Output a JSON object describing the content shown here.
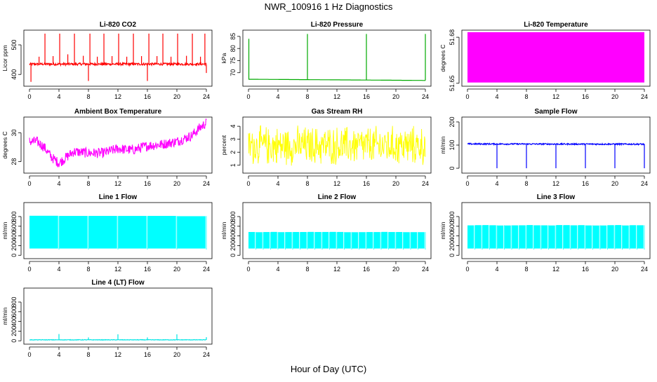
{
  "page": {
    "title": "NWR_100916  1 Hz Diagnostics",
    "xlabel": "Hour of Day (UTC)"
  },
  "chart_data": [
    {
      "type": "line",
      "title": "Li-820 CO2",
      "ylabel": "Licor ppm",
      "color": "#ff0000",
      "xlabel": "",
      "xlim": [
        0,
        24
      ],
      "xticks": [
        0,
        4,
        8,
        12,
        16,
        20,
        24
      ],
      "ylim": [
        365,
        545
      ],
      "yticks": [
        400,
        500
      ],
      "baseline": 435,
      "noise": 4,
      "spikes": [
        {
          "x": 0.2,
          "y": 375
        },
        {
          "x": 1.3,
          "y": 460
        },
        {
          "x": 2.1,
          "y": 538
        },
        {
          "x": 3.2,
          "y": 462
        },
        {
          "x": 4.1,
          "y": 538
        },
        {
          "x": 5.2,
          "y": 468
        },
        {
          "x": 6.1,
          "y": 538
        },
        {
          "x": 7.3,
          "y": 463
        },
        {
          "x": 8.0,
          "y": 378
        },
        {
          "x": 8.2,
          "y": 538
        },
        {
          "x": 9.2,
          "y": 460
        },
        {
          "x": 10.1,
          "y": 538
        },
        {
          "x": 11.2,
          "y": 462
        },
        {
          "x": 12.1,
          "y": 538
        },
        {
          "x": 13.2,
          "y": 460
        },
        {
          "x": 14.1,
          "y": 538
        },
        {
          "x": 15.2,
          "y": 462
        },
        {
          "x": 16.0,
          "y": 378
        },
        {
          "x": 16.2,
          "y": 538
        },
        {
          "x": 17.3,
          "y": 462
        },
        {
          "x": 18.1,
          "y": 538
        },
        {
          "x": 19.2,
          "y": 460
        },
        {
          "x": 20.1,
          "y": 538
        },
        {
          "x": 21.3,
          "y": 463
        },
        {
          "x": 22.1,
          "y": 538
        },
        {
          "x": 23.2,
          "y": 460
        },
        {
          "x": 23.8,
          "y": 538
        },
        {
          "x": 24.0,
          "y": 405
        }
      ]
    },
    {
      "type": "line",
      "title": "Li-820 Pressure",
      "ylabel": "kPa",
      "color": "#00aa00",
      "xlabel": "",
      "xlim": [
        0,
        24
      ],
      "xticks": [
        0,
        4,
        8,
        12,
        16,
        20,
        24
      ],
      "ylim": [
        65,
        87
      ],
      "yticks": [
        70,
        75,
        80,
        85
      ],
      "trend": [
        [
          0,
          67.3
        ],
        [
          24,
          66.8
        ]
      ],
      "spikes": [
        {
          "x": 0.05,
          "y": 84
        },
        {
          "x": 8.0,
          "y": 86
        },
        {
          "x": 16.0,
          "y": 86
        },
        {
          "x": 24.0,
          "y": 86
        }
      ]
    },
    {
      "type": "area",
      "title": "Li-820 Temperature",
      "ylabel": "degrees C",
      "color": "#ff00ff",
      "xlabel": "",
      "xlim": [
        0,
        24
      ],
      "xticks": [
        0,
        4,
        8,
        12,
        16,
        20,
        24
      ],
      "ylim": [
        51.649,
        51.6837
      ],
      "yticks": [
        51.65,
        51.68
      ],
      "ytick_labels": [
        "51.65",
        "51.68"
      ],
      "band": [
        51.6505,
        51.6833
      ]
    },
    {
      "type": "line",
      "title": "Ambient Box Temperature",
      "ylabel": "degrees C",
      "color": "#ff00ff",
      "xlabel": "",
      "xlim": [
        0,
        24
      ],
      "xticks": [
        0,
        4,
        8,
        12,
        16,
        20,
        24
      ],
      "ylim": [
        27.3,
        31.0
      ],
      "yticks": [
        28,
        30
      ],
      "noise": 0.35,
      "trend": [
        [
          0,
          29.4
        ],
        [
          1,
          29.4
        ],
        [
          2,
          29.0
        ],
        [
          3,
          28.3
        ],
        [
          4,
          27.9
        ],
        [
          5,
          28.3
        ],
        [
          6,
          28.7
        ],
        [
          8,
          28.6
        ],
        [
          10,
          28.6
        ],
        [
          12,
          28.9
        ],
        [
          14,
          28.8
        ],
        [
          16,
          29.1
        ],
        [
          18,
          29.2
        ],
        [
          20,
          29.4
        ],
        [
          22,
          29.8
        ],
        [
          23,
          30.3
        ],
        [
          24,
          30.7
        ]
      ]
    },
    {
      "type": "line",
      "title": "Gas Stream RH",
      "ylabel": "percent",
      "color": "#ffff00",
      "xlabel": "",
      "xlim": [
        0,
        24
      ],
      "xticks": [
        0,
        4,
        8,
        12,
        16,
        20,
        24
      ],
      "ylim": [
        0.5,
        4.6
      ],
      "yticks": [
        1,
        2,
        3,
        4
      ],
      "trend": [
        [
          0,
          2.5
        ],
        [
          24,
          2.5
        ]
      ],
      "noise": 1.7
    },
    {
      "type": "line",
      "title": "Sample Flow",
      "ylabel": "ml/min",
      "color": "#0000ff",
      "xlabel": "",
      "xlim": [
        0,
        24
      ],
      "xticks": [
        0,
        4,
        8,
        12,
        16,
        20,
        24
      ],
      "ylim": [
        -15,
        215
      ],
      "yticks": [
        0,
        100,
        200
      ],
      "trend": [
        [
          0,
          105
        ],
        [
          24,
          104
        ]
      ],
      "noise": 3,
      "spikes": [
        {
          "x": 4.0,
          "y": 0
        },
        {
          "x": 8.0,
          "y": 0
        },
        {
          "x": 12.0,
          "y": 0
        },
        {
          "x": 16.0,
          "y": 0
        },
        {
          "x": 20.0,
          "y": 0
        },
        {
          "x": 24.0,
          "y": 0
        }
      ]
    },
    {
      "type": "area",
      "title": "Line 1 Flow",
      "ylabel": "ml/min",
      "color": "#00ffff",
      "xlabel": "",
      "xlim": [
        0,
        24
      ],
      "xticks": [
        0,
        4,
        8,
        12,
        16,
        20,
        24
      ],
      "ylim": [
        -40,
        1060
      ],
      "yticks": [
        0,
        200,
        400,
        600,
        800
      ],
      "band": [
        140,
        810
      ],
      "gaps": [
        4,
        8,
        12,
        16,
        20,
        24
      ],
      "minor_gaps": 0
    },
    {
      "type": "area",
      "title": "Line 2 Flow",
      "ylabel": "ml/min",
      "color": "#00ffff",
      "xlabel": "",
      "xlim": [
        0,
        24
      ],
      "xticks": [
        0,
        4,
        8,
        12,
        16,
        20,
        24
      ],
      "ylim": [
        -40,
        1060
      ],
      "yticks": [
        0,
        200,
        400,
        600,
        800
      ],
      "band": [
        140,
        480
      ],
      "gaps": [
        4,
        8,
        12,
        16,
        20,
        24
      ],
      "minor_gaps": 3
    },
    {
      "type": "area",
      "title": "Line 3 Flow",
      "ylabel": "ml/min",
      "color": "#00ffff",
      "xlabel": "",
      "xlim": [
        0,
        24
      ],
      "xticks": [
        0,
        4,
        8,
        12,
        16,
        20,
        24
      ],
      "ylim": [
        -40,
        1060
      ],
      "yticks": [
        0,
        200,
        400,
        600,
        800
      ],
      "band": [
        140,
        620
      ],
      "gaps": [
        4,
        8,
        12,
        16,
        20,
        24
      ],
      "minor_gaps": 3
    },
    {
      "type": "line",
      "title": "Line 4 (LT) Flow",
      "ylabel": "ml/min",
      "color": "#00e5e5",
      "xlabel": "",
      "xlim": [
        0,
        24
      ],
      "xticks": [
        0,
        4,
        8,
        12,
        16,
        20,
        24
      ],
      "ylim": [
        -40,
        1060
      ],
      "yticks": [
        0,
        200,
        400,
        600,
        800
      ],
      "trend": [
        [
          0,
          20
        ],
        [
          24,
          20
        ]
      ],
      "noise": 5,
      "spikes": [
        {
          "x": 4.0,
          "y": 140
        },
        {
          "x": 8.0,
          "y": 70
        },
        {
          "x": 12.0,
          "y": 135
        },
        {
          "x": 16.0,
          "y": 70
        },
        {
          "x": 20.0,
          "y": 135
        },
        {
          "x": 24.0,
          "y": 75
        }
      ]
    }
  ]
}
